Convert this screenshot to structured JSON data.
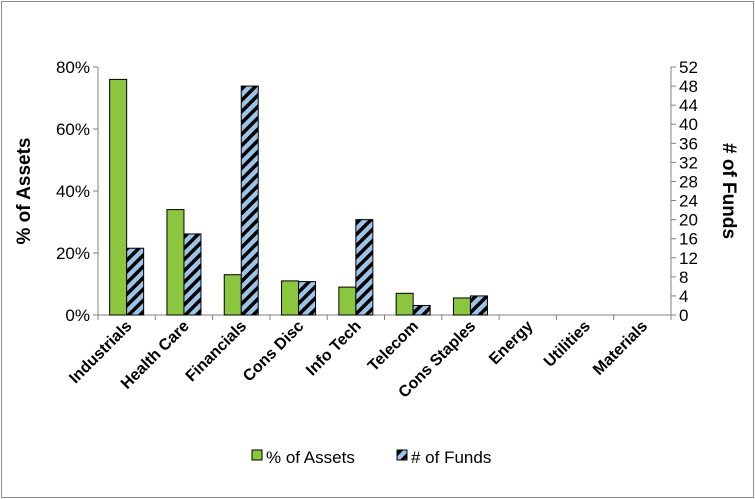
{
  "chart_data": {
    "type": "bar",
    "categories": [
      "Industrials",
      "Health Care",
      "Financials",
      "Cons Disc",
      "Info Tech",
      "Telecom",
      "Cons Staples",
      "Energy",
      "Utilities",
      "Materials"
    ],
    "series": [
      {
        "name": "% of Assets",
        "axis": "left",
        "values": [
          76,
          34,
          13,
          11,
          9,
          7,
          5.5,
          0,
          0,
          0
        ],
        "color": "#8cc63f"
      },
      {
        "name": "# of Funds",
        "axis": "right",
        "values": [
          14,
          17,
          48,
          7,
          20,
          2,
          4,
          0,
          0,
          0
        ],
        "color": "#9dc3e6",
        "pattern": "diagonal-stripes"
      }
    ],
    "ylabel": "% of Assets",
    "ylim": [
      0,
      80
    ],
    "yticks": [
      "0%",
      "20%",
      "40%",
      "60%",
      "80%"
    ],
    "y2label": "# of Funds",
    "y2lim": [
      0,
      52
    ],
    "y2ticks": [
      "0",
      "4",
      "8",
      "12",
      "16",
      "20",
      "24",
      "28",
      "32",
      "36",
      "40",
      "44",
      "48",
      "52"
    ],
    "legend_position": "bottom",
    "grid": false
  }
}
